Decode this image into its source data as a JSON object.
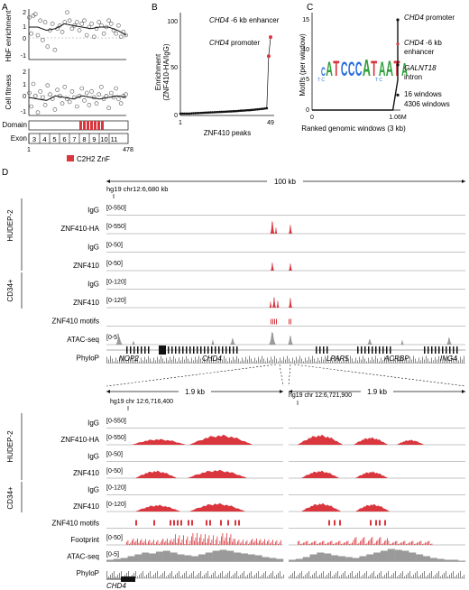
{
  "panel_a": {
    "letter": "A",
    "hbf_label": "HbF enrichment",
    "hbf_ticks": [
      "2",
      "1",
      "0",
      "-1"
    ],
    "fitness_label": "Cell fitness",
    "fitness_ticks": [
      "2",
      "1",
      "0",
      "-1"
    ],
    "domain_label": "Domain",
    "exon_label": "Exon",
    "exons": [
      "3",
      "4",
      "5",
      "6",
      "7",
      "8",
      "9",
      "10",
      "11"
    ],
    "aa_start": "1",
    "aa_end": "478",
    "legend": "C2H2 ZnF",
    "znf_color": "#d9363e"
  },
  "panel_b": {
    "letter": "B",
    "ylabel_line1": "Enrichment",
    "ylabel_line2": "(ZNF410-HA/IgG)",
    "yticks": [
      "100",
      "50",
      "0"
    ],
    "xticks": [
      "1",
      "49"
    ],
    "xlabel": "ZNF410 peaks",
    "enhancer_gene": "CHD4",
    "enhancer_rest": " -6 kb enhancer",
    "promoter_gene": "CHD4",
    "promoter_rest": " promoter"
  },
  "panel_c": {
    "letter": "C",
    "ylabel": "Motifs (per window)",
    "yticks": [
      "15",
      "10",
      "5",
      "0"
    ],
    "xticks": [
      "0",
      "1.06M"
    ],
    "xlabel": "Ranked genomic windows (3 kb)",
    "motif_letters": [
      "C",
      "A",
      "T",
      "C",
      "C",
      "C",
      "A",
      "T",
      "A",
      "A",
      "T",
      "A"
    ],
    "motif_extra_left": "T C",
    "motif_extra_right": "T C",
    "ann1_gene": "CHD4",
    "ann1_rest": " promoter",
    "ann2_gene": "CHD4",
    "ann2_rest": " -6 kb",
    "ann2_line2": "enhancer",
    "ann3_gene": "GALNT18",
    "ann3_line2": "intron",
    "ann4": "16 windows",
    "ann5": "4306 windows"
  },
  "chart_data": [
    {
      "type": "scatter",
      "panel": "A-top",
      "ylabel": "HbF enrichment",
      "ylim": [
        -1,
        2
      ],
      "x": [
        2,
        12,
        22,
        32,
        44,
        56,
        68,
        80,
        92,
        104,
        116,
        128,
        140,
        152,
        164,
        176,
        188,
        200,
        212,
        224,
        236,
        248,
        260,
        272,
        284,
        296,
        308,
        320,
        332,
        344,
        356,
        368,
        380,
        392,
        404,
        416,
        428,
        440,
        452,
        464,
        476
      ],
      "y": [
        1.6,
        0.6,
        1.7,
        1.8,
        0.5,
        1.4,
        0.2,
        1.3,
        -0.2,
        0.8,
        1.2,
        -0.4,
        0.9,
        1.1,
        0.7,
        1.3,
        1.9,
        1.4,
        0.9,
        1.1,
        1.3,
        0.8,
        1.2,
        1.4,
        0.5,
        1.0,
        1.2,
        0.4,
        0.9,
        1.3,
        1.1,
        0.6,
        1.0,
        1.4,
        1.2,
        0.8,
        0.6,
        1.1,
        0.4,
        0.7,
        0.5
      ],
      "trend": [
        1.0,
        1.0,
        0.8,
        0.9,
        1.2,
        1.1,
        1.0,
        0.9,
        1.0,
        1.0,
        0.8,
        0.5
      ]
    },
    {
      "type": "scatter",
      "panel": "A-bottom",
      "ylabel": "Cell fitness",
      "ylim": [
        -1,
        2
      ],
      "x": [
        2,
        12,
        22,
        32,
        44,
        56,
        68,
        80,
        92,
        104,
        116,
        128,
        140,
        152,
        164,
        176,
        188,
        200,
        212,
        224,
        236,
        248,
        260,
        272,
        284,
        296,
        308,
        320,
        332,
        344,
        356,
        368,
        380,
        392,
        404,
        416,
        428,
        440,
        452,
        464,
        476
      ],
      "y": [
        0.5,
        -0.4,
        1.1,
        0.3,
        -0.8,
        0.6,
        0.2,
        -0.3,
        1.0,
        0.4,
        0.1,
        -0.6,
        0.7,
        0.3,
        -0.2,
        0.9,
        0.1,
        -0.1,
        0.6,
        0.2,
        -0.4,
        0.3,
        0.8,
        0.0,
        0.5,
        -0.3,
        0.6,
        0.2,
        -0.2,
        0.4,
        0.9,
        0.1,
        0.3,
        -0.5,
        0.5,
        0.2,
        0.8,
        0.1,
        -0.2,
        0.3,
        0.4
      ],
      "trend": [
        0.2,
        0.1,
        0.0,
        0.3,
        0.2,
        0.1,
        0.3,
        0.2,
        0.1,
        0.2,
        0.3,
        0.2
      ]
    },
    {
      "type": "line",
      "panel": "B",
      "xlabel": "ZNF410 peaks",
      "ylabel": "Enrichment (ZNF410-HA/IgG)",
      "xlim": [
        1,
        49
      ],
      "ylim": [
        0,
        100
      ],
      "x": [
        1,
        2,
        3,
        4,
        5,
        6,
        7,
        8,
        9,
        10,
        11,
        12,
        13,
        14,
        15,
        16,
        17,
        18,
        19,
        20,
        21,
        22,
        23,
        24,
        25,
        26,
        27,
        28,
        29,
        30,
        31,
        32,
        33,
        34,
        35,
        36,
        37,
        38,
        39,
        40,
        41,
        42,
        43,
        44,
        45,
        46,
        47,
        48,
        49
      ],
      "y": [
        2,
        2,
        2,
        2,
        2,
        2,
        2.2,
        2.3,
        2.4,
        2.5,
        2.6,
        2.7,
        2.8,
        2.9,
        3,
        3.1,
        3.2,
        3.3,
        3.4,
        3.5,
        3.6,
        3.7,
        3.8,
        3.9,
        4,
        4.1,
        4.2,
        4.3,
        4.4,
        4.5,
        4.6,
        4.8,
        5,
        5.1,
        5.2,
        5.4,
        5.5,
        5.6,
        5.8,
        6,
        6.2,
        6.4,
        6.6,
        6.8,
        7,
        7.3,
        7.6,
        62,
        82
      ]
    },
    {
      "type": "line",
      "panel": "C",
      "xlabel": "Ranked genomic windows (3 kb)",
      "ylabel": "Motifs (per window)",
      "ylim": [
        0,
        15
      ],
      "x": [
        0,
        0.2,
        0.4,
        0.6,
        0.8,
        1.0,
        1.0599,
        1.06
      ],
      "y": [
        0,
        0,
        0,
        0,
        0,
        0,
        5,
        15
      ]
    }
  ],
  "panel_d": {
    "letter": "D",
    "scale_top": "100 kb",
    "coord_top": "hg19 chr12:6,680 kb",
    "hudep_label": "HUDEP-2",
    "cd34_label": "CD34+",
    "tracks_top": [
      {
        "name": "IgG",
        "range": "[0-550]"
      },
      {
        "name": "ZNF410-HA",
        "range": "[0-550]"
      },
      {
        "name": "IgG",
        "range": "[0-50]"
      },
      {
        "name": "ZNF410",
        "range": "[0-50]"
      },
      {
        "name": "IgG",
        "range": "[0-120]"
      },
      {
        "name": "ZNF410",
        "range": "[0-120]"
      },
      {
        "name": "ZNF410 motifs",
        "range": ""
      },
      {
        "name": "ATAC-seq",
        "range": "[0-5]"
      },
      {
        "name": "PhyloP",
        "range": ""
      }
    ],
    "genes_top": [
      "NOP2",
      "CHD4",
      "LPAR5",
      "ACRBP",
      "ING4"
    ],
    "zoom_left_scale": "1.9 kb",
    "zoom_left_coord": "hg19 chr 12:6,716,400",
    "zoom_right_scale": "1.9 kb",
    "zoom_right_coord": "hg19 chr 12:6,721,900",
    "tracks_bottom": [
      {
        "name": "IgG",
        "range": "[0-550]"
      },
      {
        "name": "ZNF410-HA",
        "range": "[0-550]"
      },
      {
        "name": "IgG",
        "range": "[0-50]"
      },
      {
        "name": "ZNF410",
        "range": "[0-50]"
      },
      {
        "name": "IgG",
        "range": "[0-120]"
      },
      {
        "name": "ZNF410",
        "range": "[0-120]"
      },
      {
        "name": "ZNF410 motifs",
        "range": ""
      },
      {
        "name": "Footprint",
        "range": "[0-50]"
      },
      {
        "name": "ATAC-seq",
        "range": "[0-5]"
      },
      {
        "name": "PhyloP",
        "range": ""
      }
    ],
    "gene_bottom": "CHD4",
    "signal_color": "#d9363e",
    "atac_color": "#9a9a9a"
  }
}
